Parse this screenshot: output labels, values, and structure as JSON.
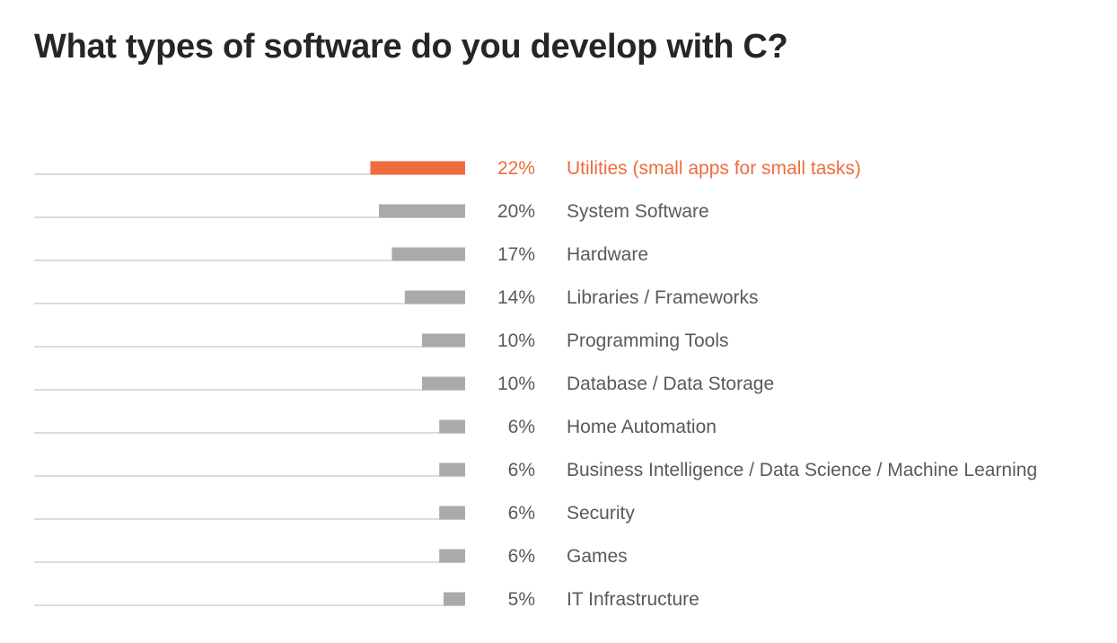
{
  "chart_data": {
    "type": "bar",
    "orientation": "horizontal",
    "title": "What types of software do you develop with C?",
    "categories": [
      "Utilities (small apps for small tasks)",
      "System Software",
      "Hardware",
      "Libraries / Frameworks",
      "Programming Tools",
      "Database / Data Storage",
      "Home Automation",
      "Business Intelligence / Data Science / Machine Learning",
      "Security",
      "Games",
      "IT Infrastructure"
    ],
    "values": [
      22,
      20,
      17,
      14,
      10,
      10,
      6,
      6,
      6,
      6,
      5
    ],
    "value_labels": [
      "22%",
      "20%",
      "17%",
      "14%",
      "10%",
      "10%",
      "6%",
      "6%",
      "6%",
      "6%",
      "5%"
    ],
    "unit": "%",
    "highlight_index": 0,
    "bar_direction": "right-to-left",
    "grid": false,
    "legend": "none"
  },
  "colors": {
    "highlight": "#ef6c3d",
    "bar": "#aaaaaa",
    "track": "#d0d0d0",
    "label_text": "#5a5a5a",
    "title_text": "#262626"
  }
}
